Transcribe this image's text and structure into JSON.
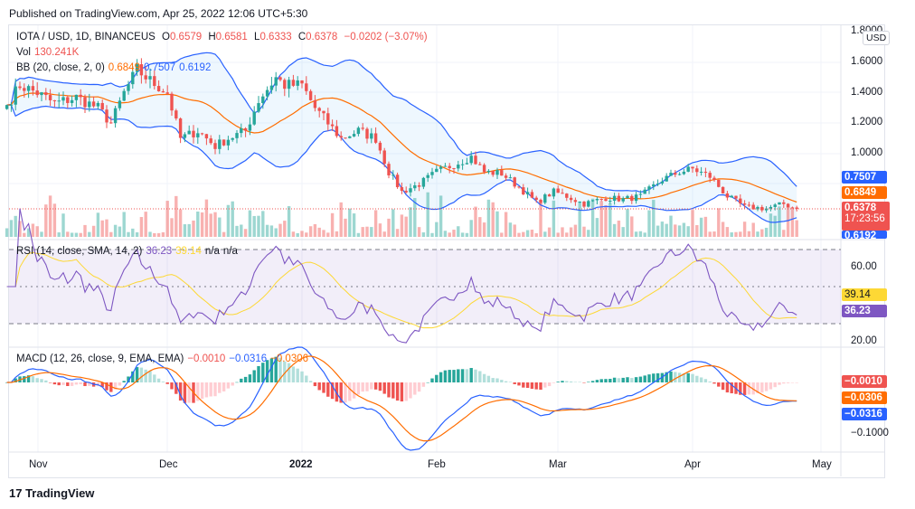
{
  "published": "Published on TradingView.com, Apr 25, 2022 12:06 UTC+5:30",
  "logo": "TradingView",
  "legend": {
    "symbol": "IOTA / USD, 1D, BINANCEUS",
    "o_label": "O",
    "o": "0.6579",
    "h_label": "H",
    "h": "0.6581",
    "l_label": "L",
    "l": "0.6333",
    "c_label": "C",
    "c": "0.6378",
    "change": "−0.0202 (−3.07%)",
    "vol_label": "Vol",
    "vol": "130.241K",
    "bb_label": "BB (20, close, 2, 0)",
    "bb_basis": "0.6849",
    "bb_upper": "0.7507",
    "bb_lower": "0.6192",
    "rsi_label": "RSI (14, close, SMA, 14, 2)",
    "rsi": "36.23",
    "rsi_sma": "39.14",
    "rsi_na1": "n/a",
    "rsi_na2": "n/a",
    "macd_label": "MACD (12, 26, close, 9, EMA, EMA)",
    "macd_hist": "−0.0010",
    "macd": "−0.0316",
    "macd_signal": "−0.0306"
  },
  "currency": "USD",
  "price_axis": [
    "1.8000",
    "1.6000",
    "1.4000",
    "1.2000",
    "1.0000"
  ],
  "price_tags": {
    "bb_upper": "0.7507",
    "bb_basis": "0.6849",
    "last": "0.6378",
    "countdown": "17:23:56",
    "bb_lower": "0.6192"
  },
  "rsi_axis": [
    "60.00",
    "20.00"
  ],
  "rsi_tags": {
    "sma": "39.14",
    "rsi": "36.23"
  },
  "macd_axis": [
    "−0.1000"
  ],
  "macd_tags": {
    "hist": "−0.0010",
    "signal": "−0.0306",
    "macd": "−0.0316"
  },
  "time_axis": [
    "Nov",
    "Dec",
    "2022",
    "Feb",
    "Mar",
    "Apr",
    "May"
  ],
  "colors": {
    "up": "#26a69a",
    "down": "#ef5350",
    "bb": "#2962ff",
    "basis": "#ff6d00",
    "rsi": "#7e57c2",
    "rsi_sma": "#fdd835",
    "macd": "#2962ff",
    "signal": "#ff6d00"
  },
  "chart_data": {
    "type": "candlestick",
    "close_keypoints": [
      [
        "2021-10-25",
        1.32
      ],
      [
        "2021-10-28",
        1.45
      ],
      [
        "2021-11-01",
        1.4
      ],
      [
        "2021-11-05",
        1.33
      ],
      [
        "2021-11-10",
        1.37
      ],
      [
        "2021-11-15",
        1.3
      ],
      [
        "2021-11-18",
        1.2
      ],
      [
        "2021-11-21",
        1.4
      ],
      [
        "2021-11-24",
        1.55
      ],
      [
        "2021-11-27",
        1.48
      ],
      [
        "2021-12-01",
        1.4
      ],
      [
        "2021-12-04",
        1.1
      ],
      [
        "2021-12-08",
        1.15
      ],
      [
        "2021-12-12",
        1.05
      ],
      [
        "2021-12-15",
        1.1
      ],
      [
        "2021-12-19",
        1.15
      ],
      [
        "2021-12-22",
        1.35
      ],
      [
        "2021-12-26",
        1.5
      ],
      [
        "2021-12-28",
        1.45
      ],
      [
        "2022-01-01",
        1.45
      ],
      [
        "2022-01-04",
        1.3
      ],
      [
        "2022-01-07",
        1.2
      ],
      [
        "2022-01-10",
        1.1
      ],
      [
        "2022-01-14",
        1.15
      ],
      [
        "2022-01-18",
        1.1
      ],
      [
        "2022-01-21",
        0.88
      ],
      [
        "2022-01-24",
        0.75
      ],
      [
        "2022-01-28",
        0.8
      ],
      [
        "2022-02-01",
        0.88
      ],
      [
        "2022-02-05",
        0.93
      ],
      [
        "2022-02-09",
        0.98
      ],
      [
        "2022-02-12",
        0.88
      ],
      [
        "2022-02-16",
        0.87
      ],
      [
        "2022-02-20",
        0.78
      ],
      [
        "2022-02-24",
        0.68
      ],
      [
        "2022-02-28",
        0.75
      ],
      [
        "2022-03-03",
        0.72
      ],
      [
        "2022-03-07",
        0.67
      ],
      [
        "2022-03-12",
        0.71
      ],
      [
        "2022-03-16",
        0.7
      ],
      [
        "2022-03-20",
        0.72
      ],
      [
        "2022-03-25",
        0.83
      ],
      [
        "2022-03-29",
        0.88
      ],
      [
        "2022-04-01",
        0.9
      ],
      [
        "2022-04-05",
        0.85
      ],
      [
        "2022-04-09",
        0.72
      ],
      [
        "2022-04-13",
        0.65
      ],
      [
        "2022-04-18",
        0.64
      ],
      [
        "2022-04-22",
        0.67
      ],
      [
        "2022-04-25",
        0.6378
      ]
    ],
    "ylim": [
      0.6,
      1.85
    ],
    "indicators": [
      "Bollinger Bands",
      "Volume",
      "RSI",
      "MACD"
    ]
  }
}
